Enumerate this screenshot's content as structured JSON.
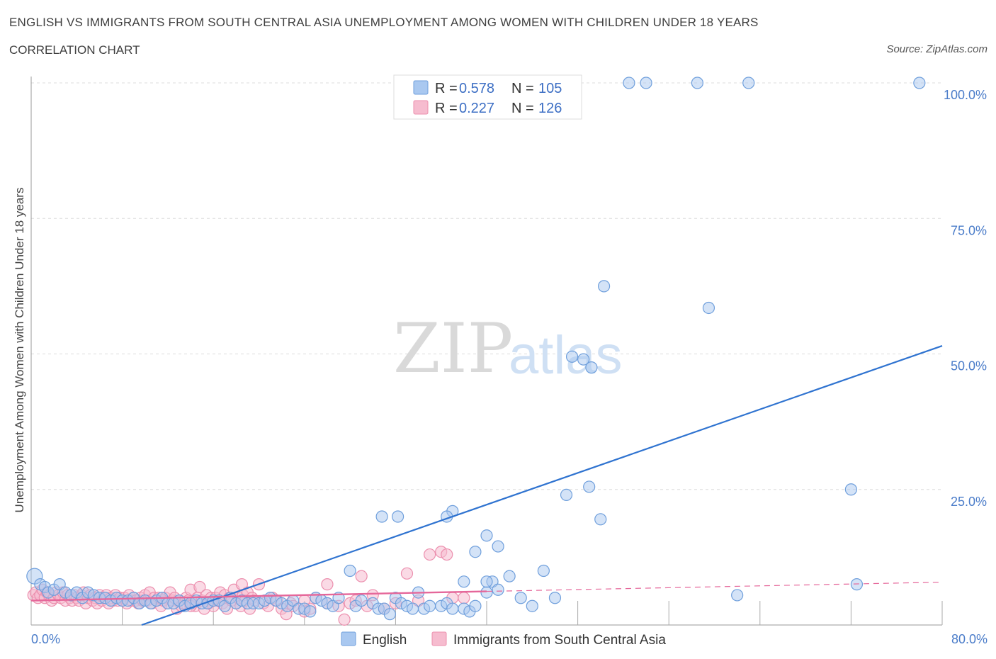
{
  "header": {
    "title": "ENGLISH VS IMMIGRANTS FROM SOUTH CENTRAL ASIA UNEMPLOYMENT AMONG WOMEN WITH CHILDREN UNDER 18 YEARS",
    "subtitle": "CORRELATION CHART",
    "source": "Source: ZipAtlas.com"
  },
  "watermark": {
    "zip": "ZIP",
    "atlas": "atlas"
  },
  "legend": {
    "english": {
      "r_label": "R = ",
      "r_value": "0.578",
      "n_label": "N = ",
      "n_value": "105"
    },
    "immigrants": {
      "r_label": "R = ",
      "r_value": "0.227",
      "n_label": "N = ",
      "n_value": "126"
    }
  },
  "bottom_legend": {
    "english": "English",
    "immigrants": "Immigrants from South Central Asia"
  },
  "colors": {
    "english_fill": "#a9c8f0",
    "english_stroke": "#6f9fdc",
    "english_line": "#2f73d0",
    "immig_fill": "#f6bccf",
    "immig_stroke": "#ec8fae",
    "immig_line": "#e5679a",
    "tick": "#4a7cc9",
    "grid": "#dcdcdc"
  },
  "chart_data": {
    "type": "scatter",
    "title": "ENGLISH VS IMMIGRANTS FROM SOUTH CENTRAL ASIA UNEMPLOYMENT AMONG WOMEN WITH CHILDREN UNDER 18 YEARS",
    "xlabel": "",
    "ylabel": "Unemployment Among Women with Children Under 18 years",
    "xlim": [
      0,
      80
    ],
    "ylim": [
      0,
      100
    ],
    "x_tick_labels": [
      "0.0%",
      "80.0%"
    ],
    "y_tick_labels": [
      "100.0%",
      "75.0%",
      "50.0%",
      "25.0%"
    ],
    "y_ticks": [
      100,
      75,
      50,
      25
    ],
    "grid": true,
    "series": [
      {
        "name": "English",
        "R": 0.578,
        "N": 105,
        "trend": {
          "x": [
            9.7,
            80
          ],
          "y": [
            0,
            51.5
          ],
          "style": "solid"
        },
        "points": [
          [
            0.3,
            9
          ],
          [
            0.8,
            7.5
          ],
          [
            1.2,
            7
          ],
          [
            1.5,
            6
          ],
          [
            2,
            6.5
          ],
          [
            2.5,
            7.5
          ],
          [
            3,
            6
          ],
          [
            3.5,
            5.5
          ],
          [
            4,
            6
          ],
          [
            4.5,
            5
          ],
          [
            5,
            6
          ],
          [
            5.5,
            5.5
          ],
          [
            6,
            5
          ],
          [
            6.5,
            5
          ],
          [
            7,
            4.5
          ],
          [
            7.5,
            5
          ],
          [
            8,
            4.5
          ],
          [
            8.5,
            4.5
          ],
          [
            9,
            5
          ],
          [
            9.5,
            4
          ],
          [
            10,
            4.5
          ],
          [
            10.5,
            4
          ],
          [
            11,
            4.5
          ],
          [
            11.5,
            5
          ],
          [
            12,
            4
          ],
          [
            12.5,
            4
          ],
          [
            13,
            4.5
          ],
          [
            13.5,
            3.5
          ],
          [
            14,
            4
          ],
          [
            14.5,
            4.5
          ],
          [
            15,
            4
          ],
          [
            15.5,
            4
          ],
          [
            16,
            4.5
          ],
          [
            16.5,
            4.5
          ],
          [
            17,
            3.5
          ],
          [
            17.5,
            5
          ],
          [
            18,
            4
          ],
          [
            18.5,
            4.5
          ],
          [
            19,
            4
          ],
          [
            19.5,
            4
          ],
          [
            20,
            4
          ],
          [
            20.5,
            4.5
          ],
          [
            21,
            5
          ],
          [
            21.5,
            4.5
          ],
          [
            22,
            4
          ],
          [
            22.5,
            3.5
          ],
          [
            23,
            4.5
          ],
          [
            23.5,
            3
          ],
          [
            24,
            3
          ],
          [
            24.5,
            2.5
          ],
          [
            25,
            5
          ],
          [
            25.5,
            4.5
          ],
          [
            26,
            4
          ],
          [
            26.5,
            3.5
          ],
          [
            27,
            5
          ],
          [
            28,
            10
          ],
          [
            28.5,
            3.5
          ],
          [
            29,
            4.5
          ],
          [
            30,
            4
          ],
          [
            30.5,
            3
          ],
          [
            31,
            3
          ],
          [
            31.5,
            2
          ],
          [
            32,
            5
          ],
          [
            32.5,
            4
          ],
          [
            33,
            3.5
          ],
          [
            33.5,
            3
          ],
          [
            34,
            6
          ],
          [
            34.5,
            3
          ],
          [
            35,
            3.5
          ],
          [
            36,
            3.5
          ],
          [
            36.5,
            4
          ],
          [
            37,
            3
          ],
          [
            38,
            3
          ],
          [
            38.5,
            2.5
          ],
          [
            39,
            3.5
          ],
          [
            40,
            6
          ],
          [
            40.5,
            8
          ],
          [
            41,
            6.5
          ],
          [
            42,
            9
          ],
          [
            43,
            5
          ],
          [
            44,
            3.5
          ],
          [
            45,
            10
          ],
          [
            46,
            5
          ],
          [
            47,
            24
          ],
          [
            49,
            25.5
          ],
          [
            50,
            19.5
          ],
          [
            47.5,
            49.5
          ],
          [
            48.5,
            49
          ],
          [
            49.2,
            47.5
          ],
          [
            50.3,
            62.5
          ],
          [
            59.5,
            58.5
          ],
          [
            30.8,
            20
          ],
          [
            32.2,
            20
          ],
          [
            37,
            21
          ],
          [
            36.5,
            20
          ],
          [
            40,
            16.5
          ],
          [
            41,
            14.5
          ],
          [
            39,
            13.5
          ],
          [
            38,
            8
          ],
          [
            40,
            8
          ],
          [
            62,
            5.5
          ],
          [
            72,
            25
          ],
          [
            72.5,
            7.5
          ],
          [
            52.5,
            100
          ],
          [
            54,
            100
          ],
          [
            58.5,
            100
          ],
          [
            63,
            100
          ],
          [
            78,
            100
          ]
        ]
      },
      {
        "name": "Immigrants from South Central Asia",
        "R": 0.227,
        "N": 126,
        "trend_solid": {
          "x": [
            0,
            40
          ],
          "y": [
            4.5,
            6.2
          ]
        },
        "trend_dashed": {
          "x": [
            40,
            80
          ],
          "y": [
            6.2,
            7.9
          ]
        },
        "points": [
          [
            0.2,
            5.5
          ],
          [
            0.4,
            6
          ],
          [
            0.6,
            5
          ],
          [
            0.8,
            5.5
          ],
          [
            1,
            6.5
          ],
          [
            1.2,
            5
          ],
          [
            1.4,
            6
          ],
          [
            1.6,
            5.5
          ],
          [
            1.8,
            4.5
          ],
          [
            2,
            5
          ],
          [
            2.2,
            6
          ],
          [
            2.4,
            5.5
          ],
          [
            2.6,
            5
          ],
          [
            2.8,
            6
          ],
          [
            3,
            4.5
          ],
          [
            3.2,
            5.5
          ],
          [
            3.4,
            5
          ],
          [
            3.6,
            4.5
          ],
          [
            3.8,
            5.5
          ],
          [
            4,
            5
          ],
          [
            4.2,
            4.5
          ],
          [
            4.4,
            5.5
          ],
          [
            4.6,
            6
          ],
          [
            4.8,
            4
          ],
          [
            5,
            5
          ],
          [
            5.2,
            5.5
          ],
          [
            5.4,
            4.5
          ],
          [
            5.6,
            5
          ],
          [
            5.8,
            4
          ],
          [
            6,
            5.5
          ],
          [
            6.2,
            4.5
          ],
          [
            6.4,
            5
          ],
          [
            6.6,
            5.5
          ],
          [
            6.8,
            4
          ],
          [
            7,
            5
          ],
          [
            7.2,
            4.5
          ],
          [
            7.4,
            5.5
          ],
          [
            7.6,
            4.5
          ],
          [
            7.8,
            5
          ],
          [
            8,
            4.5
          ],
          [
            8.2,
            5
          ],
          [
            8.4,
            4
          ],
          [
            8.6,
            5.5
          ],
          [
            8.8,
            4.5
          ],
          [
            9,
            5
          ],
          [
            9.2,
            4.5
          ],
          [
            9.4,
            4
          ],
          [
            9.6,
            5
          ],
          [
            9.8,
            4.5
          ],
          [
            10,
            5.5
          ],
          [
            10.2,
            4.5
          ],
          [
            10.4,
            6
          ],
          [
            10.6,
            4
          ],
          [
            10.8,
            5
          ],
          [
            11,
            4.5
          ],
          [
            11.2,
            5
          ],
          [
            11.4,
            3.5
          ],
          [
            11.6,
            4.5
          ],
          [
            11.8,
            5
          ],
          [
            12,
            4
          ],
          [
            12.2,
            6
          ],
          [
            12.4,
            4.5
          ],
          [
            12.6,
            5
          ],
          [
            12.8,
            3
          ],
          [
            13,
            4.5
          ],
          [
            13.2,
            3.5
          ],
          [
            13.4,
            4
          ],
          [
            13.6,
            5
          ],
          [
            13.8,
            4.5
          ],
          [
            14,
            6.5
          ],
          [
            14.2,
            4
          ],
          [
            14.4,
            3.5
          ],
          [
            14.6,
            5
          ],
          [
            14.8,
            7
          ],
          [
            15,
            4.5
          ],
          [
            15.2,
            3
          ],
          [
            15.4,
            5.5
          ],
          [
            15.6,
            4
          ],
          [
            15.8,
            5
          ],
          [
            16,
            3.5
          ],
          [
            16.2,
            5
          ],
          [
            16.4,
            4.5
          ],
          [
            16.6,
            6
          ],
          [
            16.8,
            4
          ],
          [
            17,
            5.5
          ],
          [
            17.2,
            3
          ],
          [
            17.4,
            5
          ],
          [
            17.6,
            4.5
          ],
          [
            17.8,
            6.5
          ],
          [
            18,
            4
          ],
          [
            18.2,
            5
          ],
          [
            18.4,
            3.5
          ],
          [
            18.6,
            5.5
          ],
          [
            18.8,
            4.5
          ],
          [
            19,
            6
          ],
          [
            19.2,
            3
          ],
          [
            19.4,
            5
          ],
          [
            19.6,
            4.5
          ],
          [
            20,
            7.5
          ],
          [
            20.4,
            4
          ],
          [
            20.8,
            3.5
          ],
          [
            21.2,
            5
          ],
          [
            21.6,
            4.5
          ],
          [
            22,
            3
          ],
          [
            22.4,
            2
          ],
          [
            22.8,
            4
          ],
          [
            23,
            3.5
          ],
          [
            24,
            2.5
          ],
          [
            24.5,
            3
          ],
          [
            25,
            5
          ],
          [
            26,
            4
          ],
          [
            27,
            3.5
          ],
          [
            27.5,
            1
          ],
          [
            28,
            4
          ],
          [
            28.5,
            4.5
          ],
          [
            29,
            9
          ],
          [
            29.5,
            3.5
          ],
          [
            30,
            5.5
          ],
          [
            31,
            3
          ],
          [
            32,
            4
          ],
          [
            33,
            9.5
          ],
          [
            34,
            4.5
          ],
          [
            35,
            13
          ],
          [
            36,
            13.5
          ],
          [
            36.5,
            13
          ],
          [
            37,
            5
          ],
          [
            38,
            5
          ],
          [
            26,
            7.5
          ],
          [
            18.5,
            7.5
          ],
          [
            24,
            4.5
          ],
          [
            14,
            3.5
          ]
        ]
      }
    ]
  }
}
